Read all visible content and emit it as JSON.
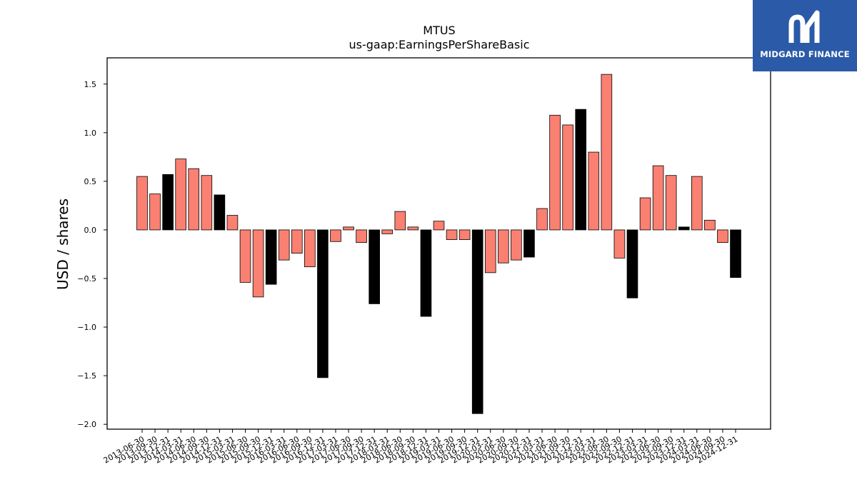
{
  "logo": {
    "text": "MIDGARD FINANCE",
    "icon": "midgard-logo-icon"
  },
  "colors": {
    "normal": "#fa8072",
    "highlight": "#000000",
    "logo_bg": "#2b5aa8"
  },
  "chart_data": {
    "type": "bar",
    "title": "MTUS",
    "subtitle": "us-gaap:EarningsPerShareBasic",
    "xlabel": "",
    "ylabel": "USD / shares",
    "ylim": [
      -2.05,
      1.77
    ],
    "yticks": [
      "1.5",
      "1.0",
      "0.5",
      "0.0",
      "−0.5",
      "−1.0",
      "−1.5",
      "−2.0"
    ],
    "ytick_values": [
      1.5,
      1.0,
      0.5,
      0.0,
      -0.5,
      -1.0,
      -1.5,
      -2.0
    ],
    "grid": false,
    "legend": "none",
    "categories": [
      "2013-06-30",
      "2013-09-30",
      "2013-12-31",
      "2014-03-31",
      "2014-06-30",
      "2014-09-30",
      "2014-12-31",
      "2015-03-31",
      "2015-06-30",
      "2015-09-30",
      "2015-12-31",
      "2016-03-31",
      "2016-06-30",
      "2016-09-30",
      "2016-12-31",
      "2017-03-31",
      "2017-06-30",
      "2017-09-30",
      "2017-12-31",
      "2018-03-31",
      "2018-06-30",
      "2018-09-30",
      "2018-12-31",
      "2019-03-31",
      "2019-06-30",
      "2019-09-30",
      "2019-12-31",
      "2020-03-31",
      "2020-06-30",
      "2020-09-30",
      "2020-12-31",
      "2021-03-31",
      "2021-06-30",
      "2021-09-30",
      "2021-12-31",
      "2022-03-31",
      "2022-06-30",
      "2022-09-30",
      "2022-12-31",
      "2023-03-31",
      "2023-06-30",
      "2023-09-30",
      "2023-12-31",
      "2024-03-31",
      "2024-06-30",
      "2024-09-30",
      "2024-12-31"
    ],
    "values": [
      0.55,
      0.37,
      0.57,
      0.73,
      0.63,
      0.56,
      0.36,
      0.15,
      -0.54,
      -0.69,
      -0.56,
      -0.31,
      -0.24,
      -0.38,
      -1.52,
      -0.12,
      0.03,
      -0.13,
      -0.76,
      -0.04,
      0.19,
      0.03,
      -0.89,
      0.09,
      -0.1,
      -0.1,
      -1.89,
      -0.44,
      -0.34,
      -0.31,
      -0.28,
      0.22,
      1.18,
      1.08,
      1.24,
      0.8,
      1.6,
      -0.29,
      -0.7,
      0.33,
      0.66,
      0.56,
      0.03,
      0.55,
      0.1,
      -0.13,
      -0.49
    ],
    "highlight": [
      false,
      false,
      true,
      false,
      false,
      false,
      true,
      false,
      false,
      false,
      true,
      false,
      false,
      false,
      true,
      false,
      false,
      false,
      true,
      false,
      false,
      false,
      true,
      false,
      false,
      false,
      true,
      false,
      false,
      false,
      true,
      false,
      false,
      false,
      true,
      false,
      false,
      false,
      true,
      false,
      false,
      false,
      true,
      false,
      false,
      false,
      true
    ]
  }
}
